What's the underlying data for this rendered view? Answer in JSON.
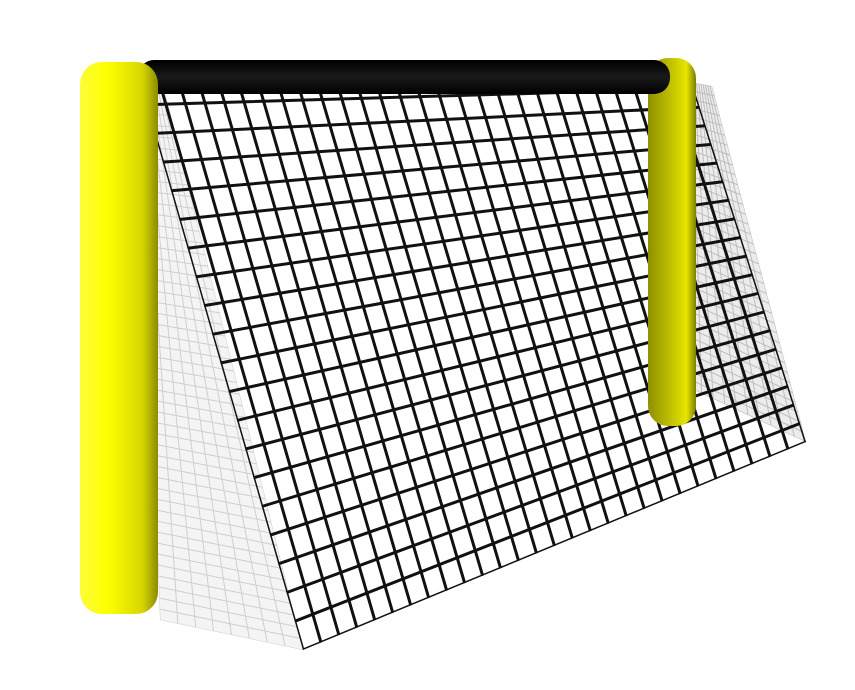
{
  "scene": {
    "colors": {
      "background": "#ffffff",
      "post_light": "#ffff00",
      "post_mid": "#c8c800",
      "post_dark": "#7a7a00",
      "crossbar": "#111111",
      "net_line": "#111111",
      "side_net": "#d8d8d8",
      "shadow": "#8f8f8f"
    },
    "net": {
      "columns": 28,
      "rows": 20
    }
  }
}
